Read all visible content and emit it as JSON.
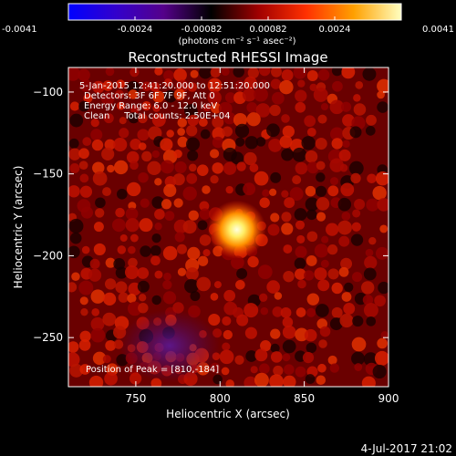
{
  "chart_data": {
    "type": "heatmap",
    "title": "Reconstructed RHESSI Image",
    "xlabel": "Heliocentric X (arcsec)",
    "ylabel": "Heliocentric Y (arcsec)",
    "xlim": [
      710,
      900
    ],
    "ylim": [
      -280,
      -85
    ],
    "xticks": [
      750,
      800,
      850,
      900
    ],
    "yticks": [
      -100,
      -150,
      -200,
      -250
    ],
    "colorbar": {
      "ticks": [
        "-0.0041",
        "-0.0024",
        "-0.00082",
        "0.00082",
        "0.0024",
        "0.0041"
      ],
      "range": [
        -0.0041,
        0.0041
      ],
      "unit_label": "(photons cm⁻² s⁻¹ asec⁻²)",
      "colormap": [
        "#0000ff",
        "#3300cc",
        "#55008a",
        "#000000",
        "#a00000",
        "#ff3000",
        "#ffa000",
        "#ffffc0"
      ]
    },
    "annotations": [
      "5-Jan-2015 12:41:20.000 to 12:51:20.000",
      "Detectors: 3F 6F 7F 9F, Att 0",
      "Energy Range: 6.0 - 12.0 keV",
      "Clean     Total counts: 2.50E+04"
    ],
    "peak_label": "Position of Peak = [810,-184]",
    "peak": {
      "x": 810,
      "y": -184,
      "value": 0.0041
    },
    "negative_region": {
      "x": 770,
      "y": -255
    }
  },
  "footer": {
    "date": "4-Jul-2017 21:02"
  },
  "colors": {
    "background": "#000000",
    "text": "#ffffff"
  }
}
